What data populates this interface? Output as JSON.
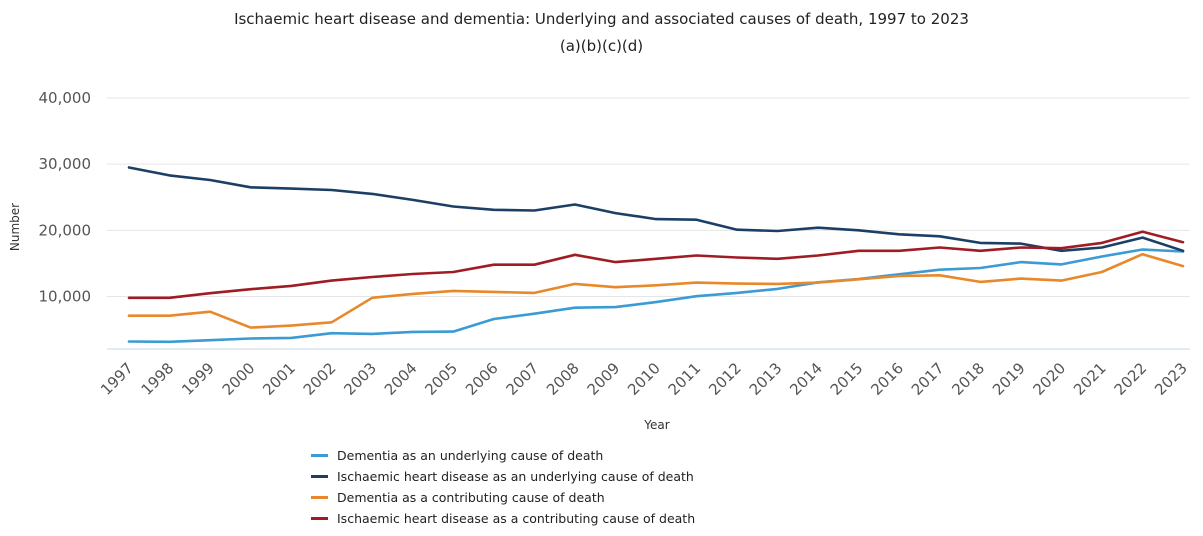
{
  "chart_data": {
    "type": "line",
    "title": "Ischaemic heart disease and dementia: Underlying and associated causes of death, 1997 to 2023",
    "subtitle": "(a)(b)(c)(d)",
    "xlabel": "Year",
    "ylabel": "Number",
    "categories": [
      "1997",
      "1998",
      "1999",
      "2000",
      "2001",
      "2002",
      "2003",
      "2004",
      "2005",
      "2006",
      "2007",
      "2008",
      "2009",
      "2010",
      "2011",
      "2012",
      "2013",
      "2014",
      "2015",
      "2016",
      "2017",
      "2018",
      "2019",
      "2020",
      "2021",
      "2022",
      "2023"
    ],
    "ylim": [
      0,
      40000
    ],
    "y_ticks": [
      {
        "value": 10000,
        "label": "10,000"
      },
      {
        "value": 20000,
        "label": "20,000"
      },
      {
        "value": 30000,
        "label": "30,000"
      },
      {
        "value": 40000,
        "label": "40,000"
      }
    ],
    "grid": true,
    "legend_position": "bottom",
    "series": [
      {
        "name": "Dementia as an underlying cause of death",
        "color": "#3b9bd4",
        "values": [
          3200,
          3150,
          3400,
          3650,
          3750,
          4450,
          4350,
          4650,
          4700,
          6600,
          7400,
          8300,
          8400,
          9150,
          10050,
          10550,
          11150,
          12150,
          12650,
          13350,
          14050,
          14300,
          15200,
          14850,
          16050,
          17100,
          16800
        ]
      },
      {
        "name": "Ischaemic heart disease as an underlying cause of death",
        "color": "#1c3f66",
        "values": [
          29500,
          28300,
          27600,
          26500,
          26300,
          26100,
          25500,
          24600,
          23600,
          23100,
          23000,
          23900,
          22600,
          21700,
          21600,
          20100,
          19900,
          20400,
          20000,
          19400,
          19100,
          18100,
          18000,
          16900,
          17400,
          18900,
          16900
        ]
      },
      {
        "name": "Dementia as a contributing cause of death",
        "color": "#e8882a",
        "values": [
          7100,
          7100,
          7700,
          5300,
          5600,
          6100,
          9800,
          10400,
          10850,
          10700,
          10550,
          11900,
          11400,
          11700,
          12100,
          11950,
          11900,
          12100,
          12600,
          13100,
          13200,
          12200,
          12700,
          12400,
          13700,
          16400,
          14600
        ]
      },
      {
        "name": "Ischaemic heart disease as a contributing cause of death",
        "color": "#a01c24",
        "values": [
          9800,
          9800,
          10500,
          11100,
          11600,
          12400,
          12950,
          13400,
          13700,
          14800,
          14800,
          16300,
          15200,
          15700,
          16200,
          15900,
          15700,
          16200,
          16900,
          16900,
          17400,
          16900,
          17400,
          17300,
          18100,
          19800,
          18200
        ]
      }
    ]
  }
}
